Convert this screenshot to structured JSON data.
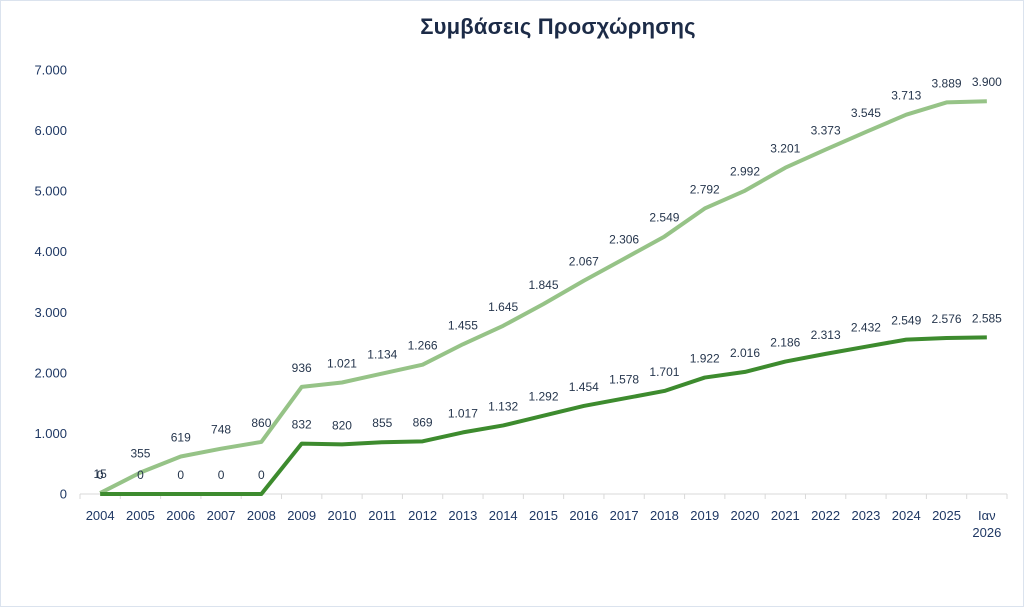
{
  "colors": {
    "background": "#ffffff",
    "title": "#1c2b47",
    "axis_text": "#1f3864",
    "data_label": "#26364d",
    "axis_line": "#d9d9d9"
  },
  "chart_data": {
    "type": "line",
    "stacked": true,
    "title": "Συμβάσεις Προσχώρησης",
    "xlabel": "",
    "ylabel": "",
    "categories": [
      "2004",
      "2005",
      "2006",
      "2007",
      "2008",
      "2009",
      "2010",
      "2011",
      "2012",
      "2013",
      "2014",
      "2015",
      "2016",
      "2017",
      "2018",
      "2019",
      "2020",
      "2021",
      "2022",
      "2023",
      "2024",
      "2025",
      "Ιαν 2026"
    ],
    "series": [
      {
        "color": "#3d8b2e",
        "values": [
          0,
          0,
          0,
          0,
          0,
          832,
          820,
          855,
          869,
          1017,
          1132,
          1292,
          1454,
          1578,
          1701,
          1922,
          2016,
          2186,
          2313,
          2432,
          2549,
          2576,
          2585
        ]
      },
      {
        "color": "#96c387",
        "values": [
          15,
          355,
          619,
          748,
          860,
          936,
          1021,
          1134,
          1266,
          1455,
          1645,
          1845,
          2067,
          2306,
          2549,
          2792,
          2992,
          3201,
          3373,
          3545,
          3713,
          3889,
          3900
        ]
      }
    ],
    "ylim": [
      0,
      7000
    ],
    "yticks": [
      0,
      1000,
      2000,
      3000,
      4000,
      5000,
      6000,
      7000
    ],
    "data_labels": true,
    "grid": false,
    "legend": "none"
  }
}
